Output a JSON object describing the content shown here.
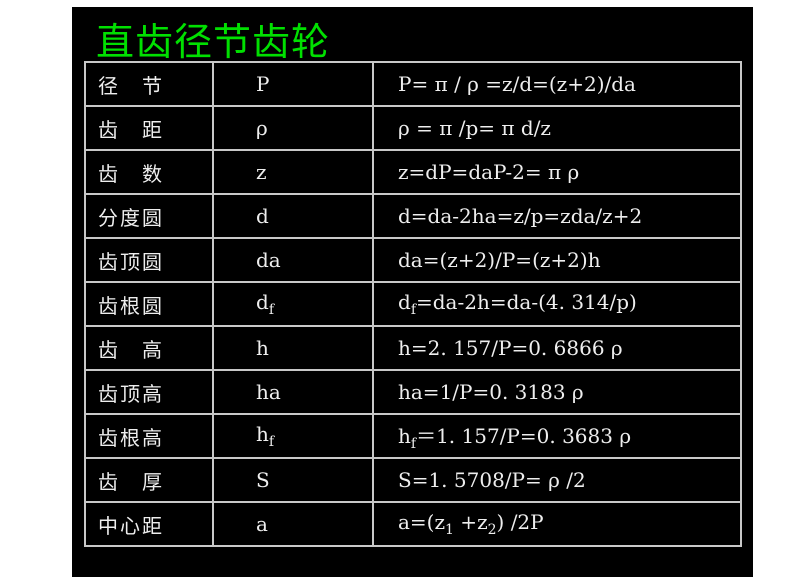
{
  "title": "直齿径节齿轮",
  "colors": {
    "title": "#00e000",
    "background": "#000000",
    "text": "#eeeeee",
    "grid": "#c8c8c8"
  },
  "rows": [
    {
      "name": "径　节",
      "symbol": [
        {
          "t": "P"
        }
      ],
      "formula": [
        {
          "t": "P= π / ρ =z/d=(z+2)/da"
        }
      ]
    },
    {
      "name": "齿　距",
      "symbol": [
        {
          "t": " ρ"
        }
      ],
      "formula": [
        {
          "t": " ρ = π /p= π d/z"
        }
      ]
    },
    {
      "name": "齿　数",
      "symbol": [
        {
          "t": "z"
        }
      ],
      "formula": [
        {
          "t": "z=dP=daP-2= π  ρ"
        }
      ]
    },
    {
      "name": "分度圆",
      "symbol": [
        {
          "t": "d"
        }
      ],
      "formula": [
        {
          "t": "d=da-2ha=z/p=zda/z+2"
        }
      ]
    },
    {
      "name": "齿顶圆",
      "symbol": [
        {
          "t": "da"
        }
      ],
      "formula": [
        {
          "t": "da=(z+2)/P=(z+2)h"
        }
      ]
    },
    {
      "name": "齿根圆",
      "symbol": [
        {
          "t": "d"
        },
        {
          "t": "f",
          "sub": true
        }
      ],
      "formula": [
        {
          "t": "d"
        },
        {
          "t": "f",
          "sub": true
        },
        {
          "t": "=da-2h=da-(4. 314/p)"
        }
      ]
    },
    {
      "name": "齿　高",
      "symbol": [
        {
          "t": "h"
        }
      ],
      "formula": [
        {
          "t": "h=2. 157/P=0. 6866 ρ"
        }
      ]
    },
    {
      "name": "齿顶高",
      "symbol": [
        {
          "t": "ha"
        }
      ],
      "formula": [
        {
          "t": "ha=1/P=0. 3183 ρ"
        }
      ]
    },
    {
      "name": "齿根高",
      "symbol": [
        {
          "t": "h"
        },
        {
          "t": "f",
          "sub": true
        }
      ],
      "formula": [
        {
          "t": "h"
        },
        {
          "t": "f",
          "sub": true
        },
        {
          "t": "＝1. 157/P=0. 3683 ρ"
        }
      ]
    },
    {
      "name": "齿　厚",
      "symbol": [
        {
          "t": "S"
        }
      ],
      "formula": [
        {
          "t": "S=1. 5708/P= ρ /2"
        }
      ]
    },
    {
      "name": "中心距",
      "symbol": [
        {
          "t": "a"
        }
      ],
      "formula": [
        {
          "t": "a=(z"
        },
        {
          "t": "1",
          "sub": true
        },
        {
          "t": " +z"
        },
        {
          "t": "2",
          "sub": true
        },
        {
          "t": ") /2P"
        }
      ]
    }
  ]
}
